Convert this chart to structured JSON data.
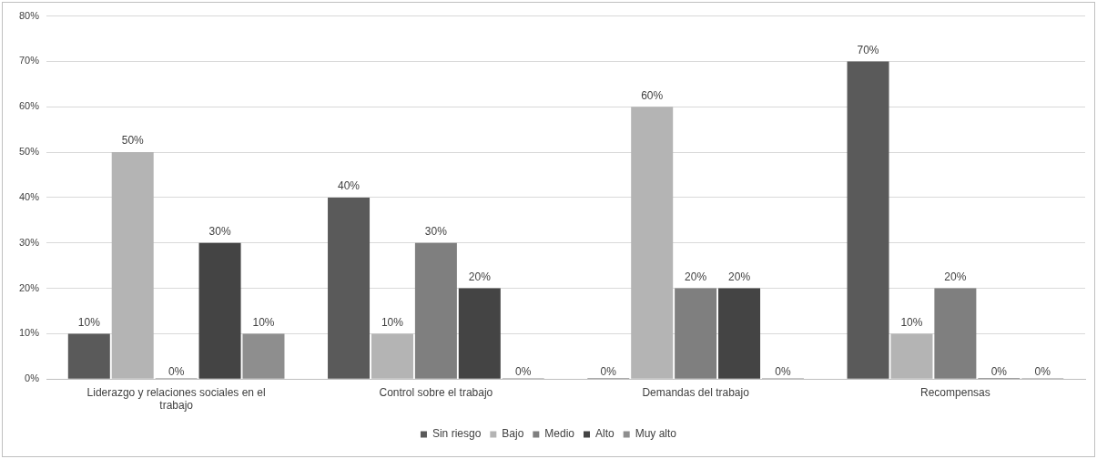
{
  "chart_data": {
    "type": "bar",
    "categories": [
      "Liderazgo y relaciones sociales en el trabajo",
      "Control sobre el trabajo",
      "Demandas del trabajo",
      "Recompensas"
    ],
    "series": [
      {
        "name": "Sin riesgo",
        "color": "#5a5a5a",
        "values": [
          10,
          40,
          0,
          70
        ],
        "value_labels": [
          "10%",
          "40%",
          "0%",
          "70%"
        ]
      },
      {
        "name": "Bajo",
        "color": "#b4b4b4",
        "values": [
          50,
          10,
          60,
          10
        ],
        "value_labels": [
          "50%",
          "10%",
          "60%",
          "10%"
        ]
      },
      {
        "name": "Medio",
        "color": "#7f7f7f",
        "values": [
          0,
          30,
          20,
          20
        ],
        "value_labels": [
          "0%",
          "30%",
          "20%",
          "20%"
        ]
      },
      {
        "name": "Alto",
        "color": "#444444",
        "values": [
          30,
          20,
          20,
          0
        ],
        "value_labels": [
          "30%",
          "20%",
          "20%",
          "0%"
        ]
      },
      {
        "name": "Muy alto",
        "color": "#8e8e8e",
        "values": [
          10,
          0,
          0,
          0
        ],
        "value_labels": [
          "10%",
          "0%",
          "0%",
          "0%"
        ]
      }
    ],
    "ylim": [
      0,
      80
    ],
    "yticks": [
      {
        "value": 0,
        "label": "0%"
      },
      {
        "value": 10,
        "label": "10%"
      },
      {
        "value": 20,
        "label": "20%"
      },
      {
        "value": 30,
        "label": "30%"
      },
      {
        "value": 40,
        "label": "40%"
      },
      {
        "value": 50,
        "label": "50%"
      },
      {
        "value": 60,
        "label": "60%"
      },
      {
        "value": 70,
        "label": "70%"
      },
      {
        "value": 80,
        "label": "80%"
      }
    ],
    "grid": "y",
    "legend": "bottom"
  }
}
